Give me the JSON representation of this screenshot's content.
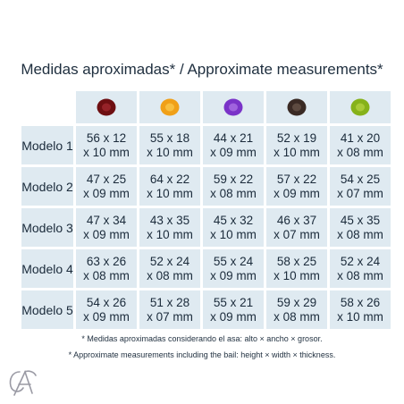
{
  "title": "Medidas aproximadas* / Approximate measurements*",
  "gems": [
    {
      "icon": "garnet-gem-icon",
      "color": "#6e0f12",
      "highlight": "#b8333a"
    },
    {
      "icon": "citrine-gem-icon",
      "color": "#f0a018",
      "highlight": "#ffd860"
    },
    {
      "icon": "amethyst-gem-icon",
      "color": "#7a33c8",
      "highlight": "#c08af0"
    },
    {
      "icon": "smoky-quartz-gem-icon",
      "color": "#3a2a24",
      "highlight": "#7a6558"
    },
    {
      "icon": "peridot-gem-icon",
      "color": "#86b21a",
      "highlight": "#c6e050"
    }
  ],
  "rows": [
    {
      "label": "Modelo 1",
      "cells": [
        [
          "56 x 12",
          "x 10 mm"
        ],
        [
          "55 x 18",
          "x 10 mm"
        ],
        [
          "44 x 21",
          "x 09 mm"
        ],
        [
          "52 x 19",
          "x 10 mm"
        ],
        [
          "41 x 20",
          "x 08 mm"
        ]
      ]
    },
    {
      "label": "Modelo 2",
      "cells": [
        [
          "47 x 25",
          "x 09 mm"
        ],
        [
          "64 x 22",
          "x 10 mm"
        ],
        [
          "59 x 22",
          "x 08 mm"
        ],
        [
          "57 x 22",
          "x 09 mm"
        ],
        [
          "54 x 25",
          "x 07 mm"
        ]
      ]
    },
    {
      "label": "Modelo 3",
      "cells": [
        [
          "47 x 34",
          "x 09 mm"
        ],
        [
          "43 x 35",
          "x 10 mm"
        ],
        [
          "45 x 32",
          "x 10 mm"
        ],
        [
          "46 x 37",
          "x 07 mm"
        ],
        [
          "45 x 35",
          "x 08 mm"
        ]
      ]
    },
    {
      "label": "Modelo 4",
      "cells": [
        [
          "63 x 26",
          "x 08 mm"
        ],
        [
          "52 x 24",
          "x 08 mm"
        ],
        [
          "55 x 24",
          "x 09 mm"
        ],
        [
          "58 x 25",
          "x 10 mm"
        ],
        [
          "52 x 24",
          "x 08 mm"
        ]
      ]
    },
    {
      "label": "Modelo 5",
      "cells": [
        [
          "54 x 26",
          "x 09 mm"
        ],
        [
          "51 x 28",
          "x 07 mm"
        ],
        [
          "55 x 21",
          "x 09 mm"
        ],
        [
          "59 x 29",
          "x 08 mm"
        ],
        [
          "58 x 26",
          "x 10 mm"
        ]
      ]
    }
  ],
  "notes": {
    "es": "* Medidas aproximadas considerando el asa: alto × ancho × grosor.",
    "en": "* Approximate measurements including the bail: height × width × thickness."
  },
  "logo": {
    "icon": "brand-logo-icon",
    "color": "#9a9aa4"
  }
}
